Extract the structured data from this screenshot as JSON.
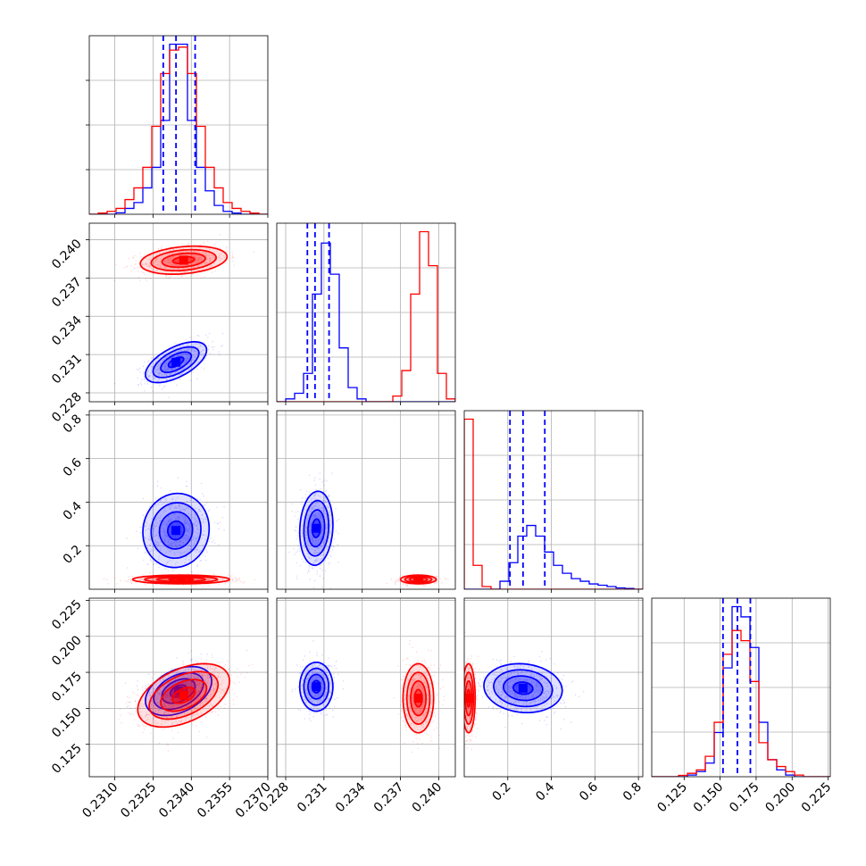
{
  "chart_data": {
    "type": "corner",
    "grid": true,
    "series": [
      {
        "name": "",
        "color": "#0000ff"
      },
      {
        "name": "",
        "color": "#ff0000"
      }
    ],
    "parameters": [
      {
        "id": "p0",
        "range": [
          0.23,
          0.237
        ],
        "ticks": [
          "0.2310",
          "0.2325",
          "0.2340",
          "0.2355",
          "0.2370"
        ],
        "tick_values": [
          0.231,
          0.2325,
          0.234,
          0.2355,
          0.237
        ],
        "quantiles": [
          0.2329,
          0.2334,
          0.23415
        ],
        "hist": {
          "edges_start": 0.23,
          "bin_width": 0.00035,
          "blue": [
            0,
            0,
            0,
            0.5,
            2,
            4,
            9,
            16,
            32,
            58,
            58,
            32,
            16,
            8,
            3,
            1,
            0.4,
            0,
            0,
            0
          ],
          "red": [
            0,
            0.4,
            1,
            2,
            5,
            9,
            16,
            30,
            48,
            56,
            57,
            48,
            30,
            16,
            9,
            4,
            2,
            1,
            0.4,
            0
          ]
        }
      },
      {
        "id": "p1",
        "range": [
          0.2273,
          0.2413
        ],
        "ticks": [
          "0.228",
          "0.231",
          "0.234",
          "0.237",
          "0.240"
        ],
        "tick_values": [
          0.228,
          0.231,
          0.234,
          0.237,
          0.24
        ],
        "quantiles": [
          0.2297,
          0.2303,
          0.2314
        ],
        "hist": {
          "edges_start": 0.2273,
          "bin_width": 0.0007,
          "blue": [
            0,
            1,
            3,
            10,
            38,
            56,
            45,
            19,
            5,
            1,
            0,
            0,
            0,
            0,
            0,
            0,
            0,
            0,
            0,
            0
          ],
          "red": [
            0,
            0,
            0,
            0,
            0,
            0,
            0,
            0,
            0,
            0,
            0,
            0,
            0,
            2,
            11,
            38,
            60,
            48,
            10,
            1
          ]
        }
      },
      {
        "id": "p2",
        "range": [
          0.0,
          0.82
        ],
        "ticks": [
          "0.2",
          "0.4",
          "0.6",
          "0.8"
        ],
        "tick_values": [
          0.2,
          0.4,
          0.6,
          0.8
        ],
        "quantiles": [
          0.21,
          0.27,
          0.37
        ],
        "hist": {
          "edges_start": 0.0,
          "bin_width": 0.041,
          "blue": [
            0,
            0,
            0,
            0,
            3,
            10,
            20,
            24,
            20,
            14,
            9,
            6,
            4,
            3,
            2,
            1.5,
            1,
            0.5,
            0.3,
            0
          ],
          "red": [
            64,
            9,
            1,
            0,
            0,
            0,
            0,
            0,
            0,
            0,
            0,
            0,
            0,
            0,
            0,
            0,
            0,
            0,
            0,
            0
          ]
        }
      },
      {
        "id": "p3",
        "range": [
          0.1025,
          0.2265
        ],
        "ticks": [
          "0.125",
          "0.150",
          "0.175",
          "0.200",
          "0.225"
        ],
        "tick_values": [
          0.125,
          0.15,
          0.175,
          0.2,
          0.225
        ],
        "quantiles": [
          0.152,
          0.162,
          0.171
        ],
        "hist": {
          "edges_start": 0.1025,
          "bin_width": 0.0062,
          "blue": [
            0,
            0,
            0,
            0,
            0.5,
            1.5,
            4,
            13,
            32,
            50,
            47,
            38,
            16,
            5,
            2,
            0.5,
            0,
            0,
            0,
            0
          ],
          "red": [
            0,
            0,
            0,
            0.4,
            1,
            2,
            6,
            16,
            36,
            43,
            40,
            28,
            10,
            5,
            3,
            1.5,
            0.5,
            0,
            0,
            0
          ]
        }
      }
    ],
    "pairs": [
      {
        "x": "p0",
        "y": "p1",
        "blue": {
          "mx": 0.2334,
          "my": 0.2304,
          "sx": 0.0006,
          "sy": 0.0008,
          "rho": 0.6
        },
        "red": {
          "mx": 0.2337,
          "my": 0.2384,
          "sx": 0.00085,
          "sy": 0.00055,
          "rho": 0.25
        }
      },
      {
        "x": "p0",
        "y": "p2",
        "blue": {
          "mx": 0.2334,
          "my": 0.27,
          "sx": 0.00065,
          "sy": 0.085,
          "rho": 0.05
        },
        "red": {
          "mx": 0.2336,
          "my": 0.045,
          "sx": 0.00095,
          "sy": 0.01,
          "rho": 0.0
        }
      },
      {
        "x": "p1",
        "y": "p2",
        "blue": {
          "mx": 0.2304,
          "my": 0.28,
          "sx": 0.00065,
          "sy": 0.085,
          "rho": 0.1
        },
        "red": {
          "mx": 0.2384,
          "my": 0.045,
          "sx": 0.0007,
          "sy": 0.01,
          "rho": 0.0
        }
      },
      {
        "x": "p0",
        "y": "p3",
        "blue": {
          "mx": 0.2335,
          "my": 0.162,
          "sx": 0.00065,
          "sy": 0.0085,
          "rho": 0.4
        },
        "red": {
          "mx": 0.2337,
          "my": 0.159,
          "sx": 0.0009,
          "sy": 0.011,
          "rho": 0.45
        }
      },
      {
        "x": "p1",
        "y": "p3",
        "blue": {
          "mx": 0.2304,
          "my": 0.165,
          "sx": 0.00065,
          "sy": 0.0085,
          "rho": 0.0
        },
        "red": {
          "mx": 0.2384,
          "my": 0.157,
          "sx": 0.0006,
          "sy": 0.012,
          "rho": 0.0
        }
      },
      {
        "x": "p2",
        "y": "p3",
        "blue": {
          "mx": 0.27,
          "my": 0.164,
          "sx": 0.09,
          "sy": 0.0085,
          "rho": -0.1
        },
        "red": {
          "mx": 0.02,
          "my": 0.157,
          "sx": 0.015,
          "sy": 0.012,
          "rho": 0.0
        }
      }
    ]
  }
}
